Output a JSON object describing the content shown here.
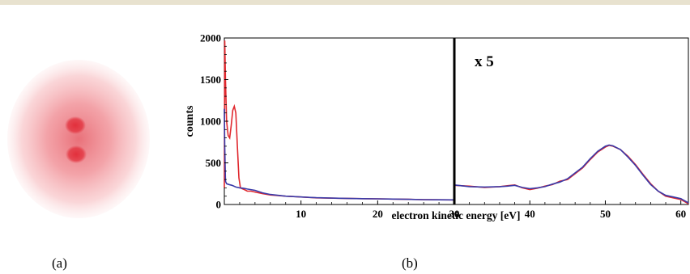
{
  "panels": {
    "a_label": "(a)",
    "b_label": "(b)"
  },
  "colors": {
    "red": "#e0282e",
    "blue": "#3a3aa8",
    "divider": "#000000",
    "detector_center": "#e2303c",
    "rule": "#e8e2cf"
  },
  "chart_data": {
    "type": "line",
    "xlabel": "electron kinetic energy [eV]",
    "ylabel": "counts",
    "ylim": [
      0,
      2000
    ],
    "annotation": "x 5",
    "left_panel": {
      "xlim": [
        0,
        30
      ],
      "x_ticks": [
        "10",
        "20",
        "30"
      ],
      "y_ticks": [
        "0",
        "500",
        "1000",
        "1500",
        "2000"
      ]
    },
    "right_panel": {
      "xlim": [
        30,
        61
      ],
      "x_ticks": [
        "30",
        "40",
        "50",
        "60"
      ],
      "scale_factor": 5
    },
    "series": [
      {
        "color": "red",
        "left_x": [
          0.0,
          0.05,
          0.15,
          0.3,
          0.5,
          0.7,
          0.9,
          1.1,
          1.3,
          1.5,
          1.7,
          1.9,
          2.1,
          2.3,
          2.6,
          3,
          3.5,
          4,
          5,
          6,
          8,
          10,
          12,
          15,
          18,
          20,
          22,
          24,
          26,
          28,
          30
        ],
        "left_y": [
          200,
          1970,
          1500,
          1000,
          830,
          800,
          950,
          1130,
          1180,
          1100,
          700,
          320,
          200,
          190,
          180,
          160,
          160,
          150,
          130,
          115,
          100,
          90,
          80,
          75,
          70,
          68,
          65,
          62,
          58,
          56,
          55
        ],
        "right_x": [
          30,
          32,
          34,
          36,
          37,
          38,
          39,
          40,
          41,
          42,
          43,
          44,
          45,
          46,
          47,
          48,
          49,
          50,
          50.5,
          51,
          52,
          53,
          54,
          55,
          56,
          57,
          58,
          59,
          60,
          61
        ],
        "right_y": [
          230,
          220,
          205,
          215,
          225,
          235,
          200,
          180,
          195,
          220,
          240,
          280,
          300,
          370,
          440,
          540,
          630,
          690,
          710,
          700,
          660,
          580,
          480,
          360,
          250,
          160,
          100,
          80,
          60,
          10
        ]
      },
      {
        "color": "blue",
        "left_x": [
          0.0,
          0.05,
          0.15,
          0.3,
          0.6,
          1.0,
          1.5,
          2.0,
          2.5,
          3,
          4,
          5,
          6,
          8,
          10,
          12,
          15,
          18,
          20,
          22,
          24,
          26,
          28,
          30
        ],
        "left_y": [
          1150,
          700,
          280,
          250,
          240,
          230,
          210,
          200,
          195,
          185,
          170,
          140,
          120,
          100,
          90,
          82,
          75,
          70,
          68,
          65,
          62,
          58,
          56,
          55
        ],
        "right_x": [
          30,
          32,
          34,
          36,
          37,
          38,
          39,
          40,
          41,
          42,
          43,
          44,
          45,
          46,
          47,
          48,
          49,
          50,
          50.5,
          51,
          52,
          53,
          54,
          55,
          56,
          57,
          58,
          59,
          60,
          61
        ],
        "right_y": [
          235,
          215,
          210,
          215,
          220,
          230,
          205,
          190,
          200,
          215,
          245,
          270,
          310,
          380,
          450,
          550,
          640,
          700,
          715,
          705,
          660,
          570,
          470,
          350,
          240,
          160,
          110,
          90,
          70,
          20
        ]
      }
    ]
  }
}
